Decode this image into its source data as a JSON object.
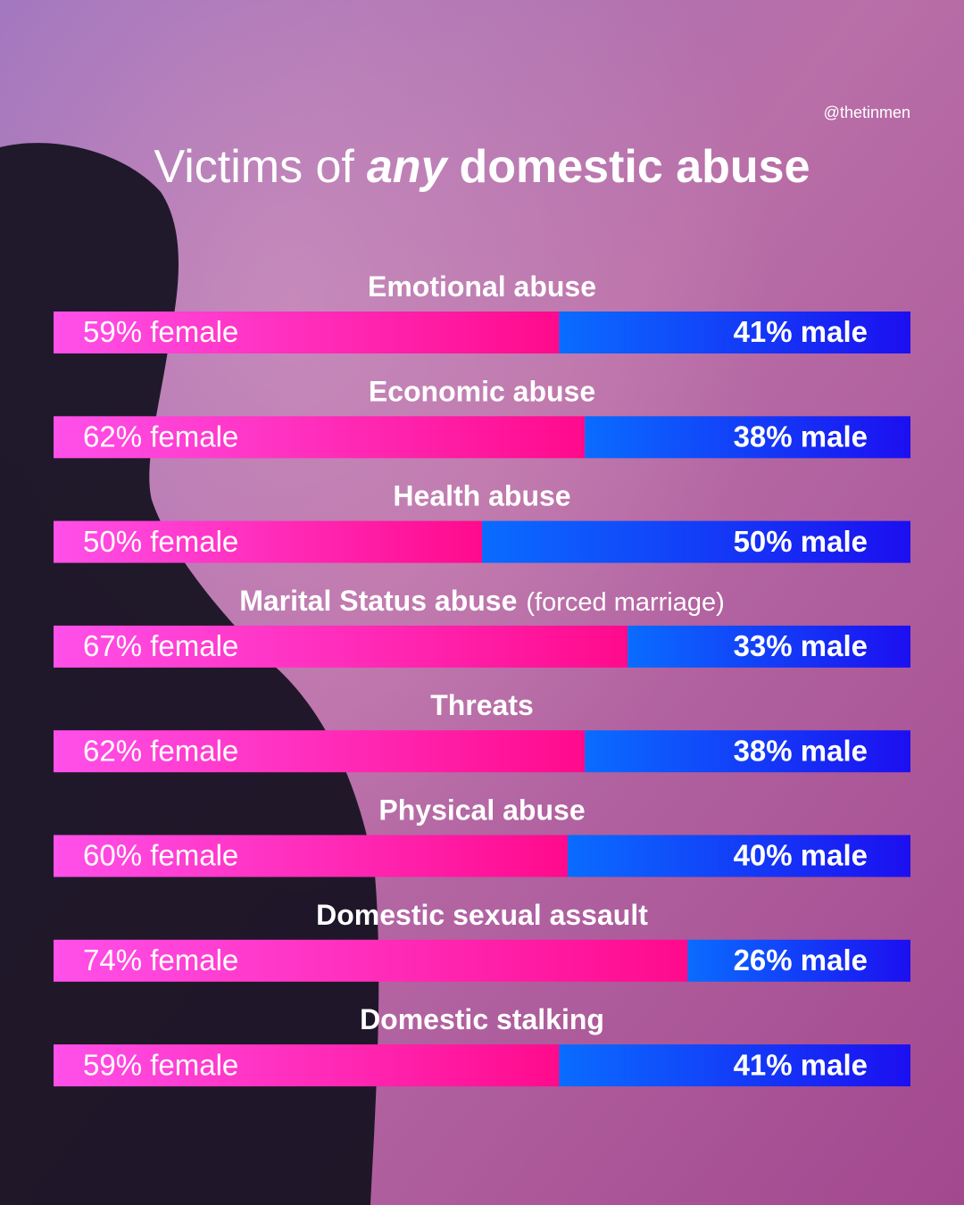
{
  "chart_data": {
    "type": "stacked-bar-horizontal",
    "credit": "@thetinmen",
    "title_parts": [
      "Victims of",
      "any",
      "domestic abuse"
    ],
    "categories": [
      "Emotional abuse",
      "Economic abuse",
      "Health abuse",
      "Marital Status abuse",
      "Threats",
      "Physical abuse",
      "Domestic sexual assault",
      "Domestic stalking"
    ],
    "category_notes": [
      null,
      null,
      null,
      "(forced marriage)",
      null,
      null,
      null,
      null
    ],
    "xlim": [
      0,
      100
    ],
    "series": [
      {
        "color": "#ff1493",
        "gradient": [
          "#ff50ea",
          "#ff0a8c"
        ],
        "values": [
          59,
          62,
          50,
          67,
          62,
          60,
          74,
          59
        ],
        "value_labels": [
          "59% female",
          "62% female",
          "50% female",
          "67% female",
          "62% female",
          "60% female",
          "74% female",
          "59% female"
        ]
      },
      {
        "color": "#1f3cff",
        "gradient": [
          "#0a6cff",
          "#1c0ff0"
        ],
        "values": [
          41,
          38,
          50,
          33,
          38,
          40,
          26,
          41
        ],
        "value_labels": [
          "41% male",
          "38% male",
          "50% male",
          "33% male",
          "38% male",
          "40% male",
          "26% male",
          "41% male"
        ]
      }
    ]
  }
}
